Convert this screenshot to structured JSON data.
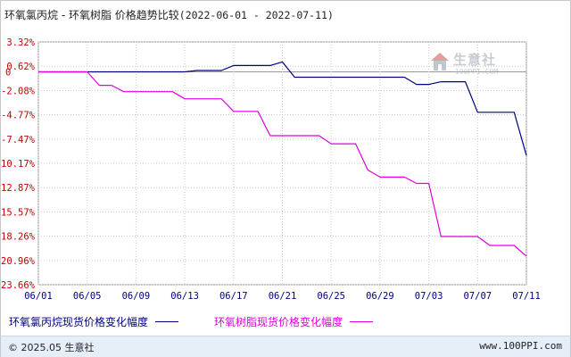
{
  "title": {
    "text": "环氧氯丙烷 - 环氧树脂 价格趋势比较",
    "range": "(2022-06-01 - 2022-07-11)"
  },
  "watermark": {
    "text": "生意社",
    "sub": "100PPI.COM"
  },
  "legend": [
    {
      "label": "环氧氯丙烷现货价格变化幅度",
      "color": "#000080"
    },
    {
      "label": "环氧树脂现货价格变化幅度",
      "color": "#e000e0"
    }
  ],
  "footer": {
    "left": "© 2025.05 生意社",
    "right": "www.100PPI.com"
  },
  "colors": {
    "ytick": "#c00000",
    "xtick": "#000080",
    "grid": "#cccccc"
  },
  "chart_data": {
    "type": "line",
    "title": "环氧氯丙烷 - 环氧树脂 价格趋势比较",
    "x_ticks": [
      "06/01",
      "06/05",
      "06/09",
      "06/13",
      "06/17",
      "06/21",
      "06/25",
      "06/29",
      "07/03",
      "07/07",
      "07/11"
    ],
    "y_ticks": [
      "3.32%",
      "0.62%",
      "-2.08%",
      "-4.77%",
      "-7.47%",
      "-10.17%",
      "-12.87%",
      "-15.57%",
      "-18.26%",
      "-20.96%",
      "-23.66%"
    ],
    "ylim": [
      -23.66,
      3.32
    ],
    "grid": true,
    "legend_position": "bottom",
    "series": [
      {
        "name": "环氧氯丙烷现货价格变化幅度",
        "color": "#000080",
        "points": [
          [
            "06/01",
            0
          ],
          [
            "06/05",
            0
          ],
          [
            "06/06",
            0
          ],
          [
            "06/13",
            0
          ],
          [
            "06/14",
            0.15
          ],
          [
            "06/16",
            0.15
          ],
          [
            "06/17",
            0.7
          ],
          [
            "06/20",
            0.7
          ],
          [
            "06/21",
            1.1
          ],
          [
            "06/22",
            -0.6
          ],
          [
            "06/29",
            -0.6
          ],
          [
            "07/01",
            -0.6
          ],
          [
            "07/02",
            -1.4
          ],
          [
            "07/03",
            -1.4
          ],
          [
            "07/04",
            -1.1
          ],
          [
            "07/06",
            -1.1
          ],
          [
            "07/07",
            -4.5
          ],
          [
            "07/10",
            -4.5
          ],
          [
            "07/11",
            -9.3
          ]
        ]
      },
      {
        "name": "环氧树脂现货价格变化幅度",
        "color": "#e000e0",
        "points": [
          [
            "06/01",
            0
          ],
          [
            "06/05",
            0
          ],
          [
            "06/06",
            -1.5
          ],
          [
            "06/07",
            -1.5
          ],
          [
            "06/08",
            -2.2
          ],
          [
            "06/12",
            -2.2
          ],
          [
            "06/13",
            -3.0
          ],
          [
            "06/16",
            -3.0
          ],
          [
            "06/17",
            -4.4
          ],
          [
            "06/19",
            -4.4
          ],
          [
            "06/20",
            -7.1
          ],
          [
            "06/24",
            -7.1
          ],
          [
            "06/25",
            -8.0
          ],
          [
            "06/27",
            -8.0
          ],
          [
            "06/28",
            -10.9
          ],
          [
            "06/29",
            -11.7
          ],
          [
            "07/01",
            -11.7
          ],
          [
            "07/02",
            -12.4
          ],
          [
            "07/03",
            -12.4
          ],
          [
            "07/04",
            -18.3
          ],
          [
            "07/07",
            -18.3
          ],
          [
            "07/08",
            -19.3
          ],
          [
            "07/10",
            -19.3
          ],
          [
            "07/11",
            -20.5
          ]
        ]
      }
    ]
  }
}
